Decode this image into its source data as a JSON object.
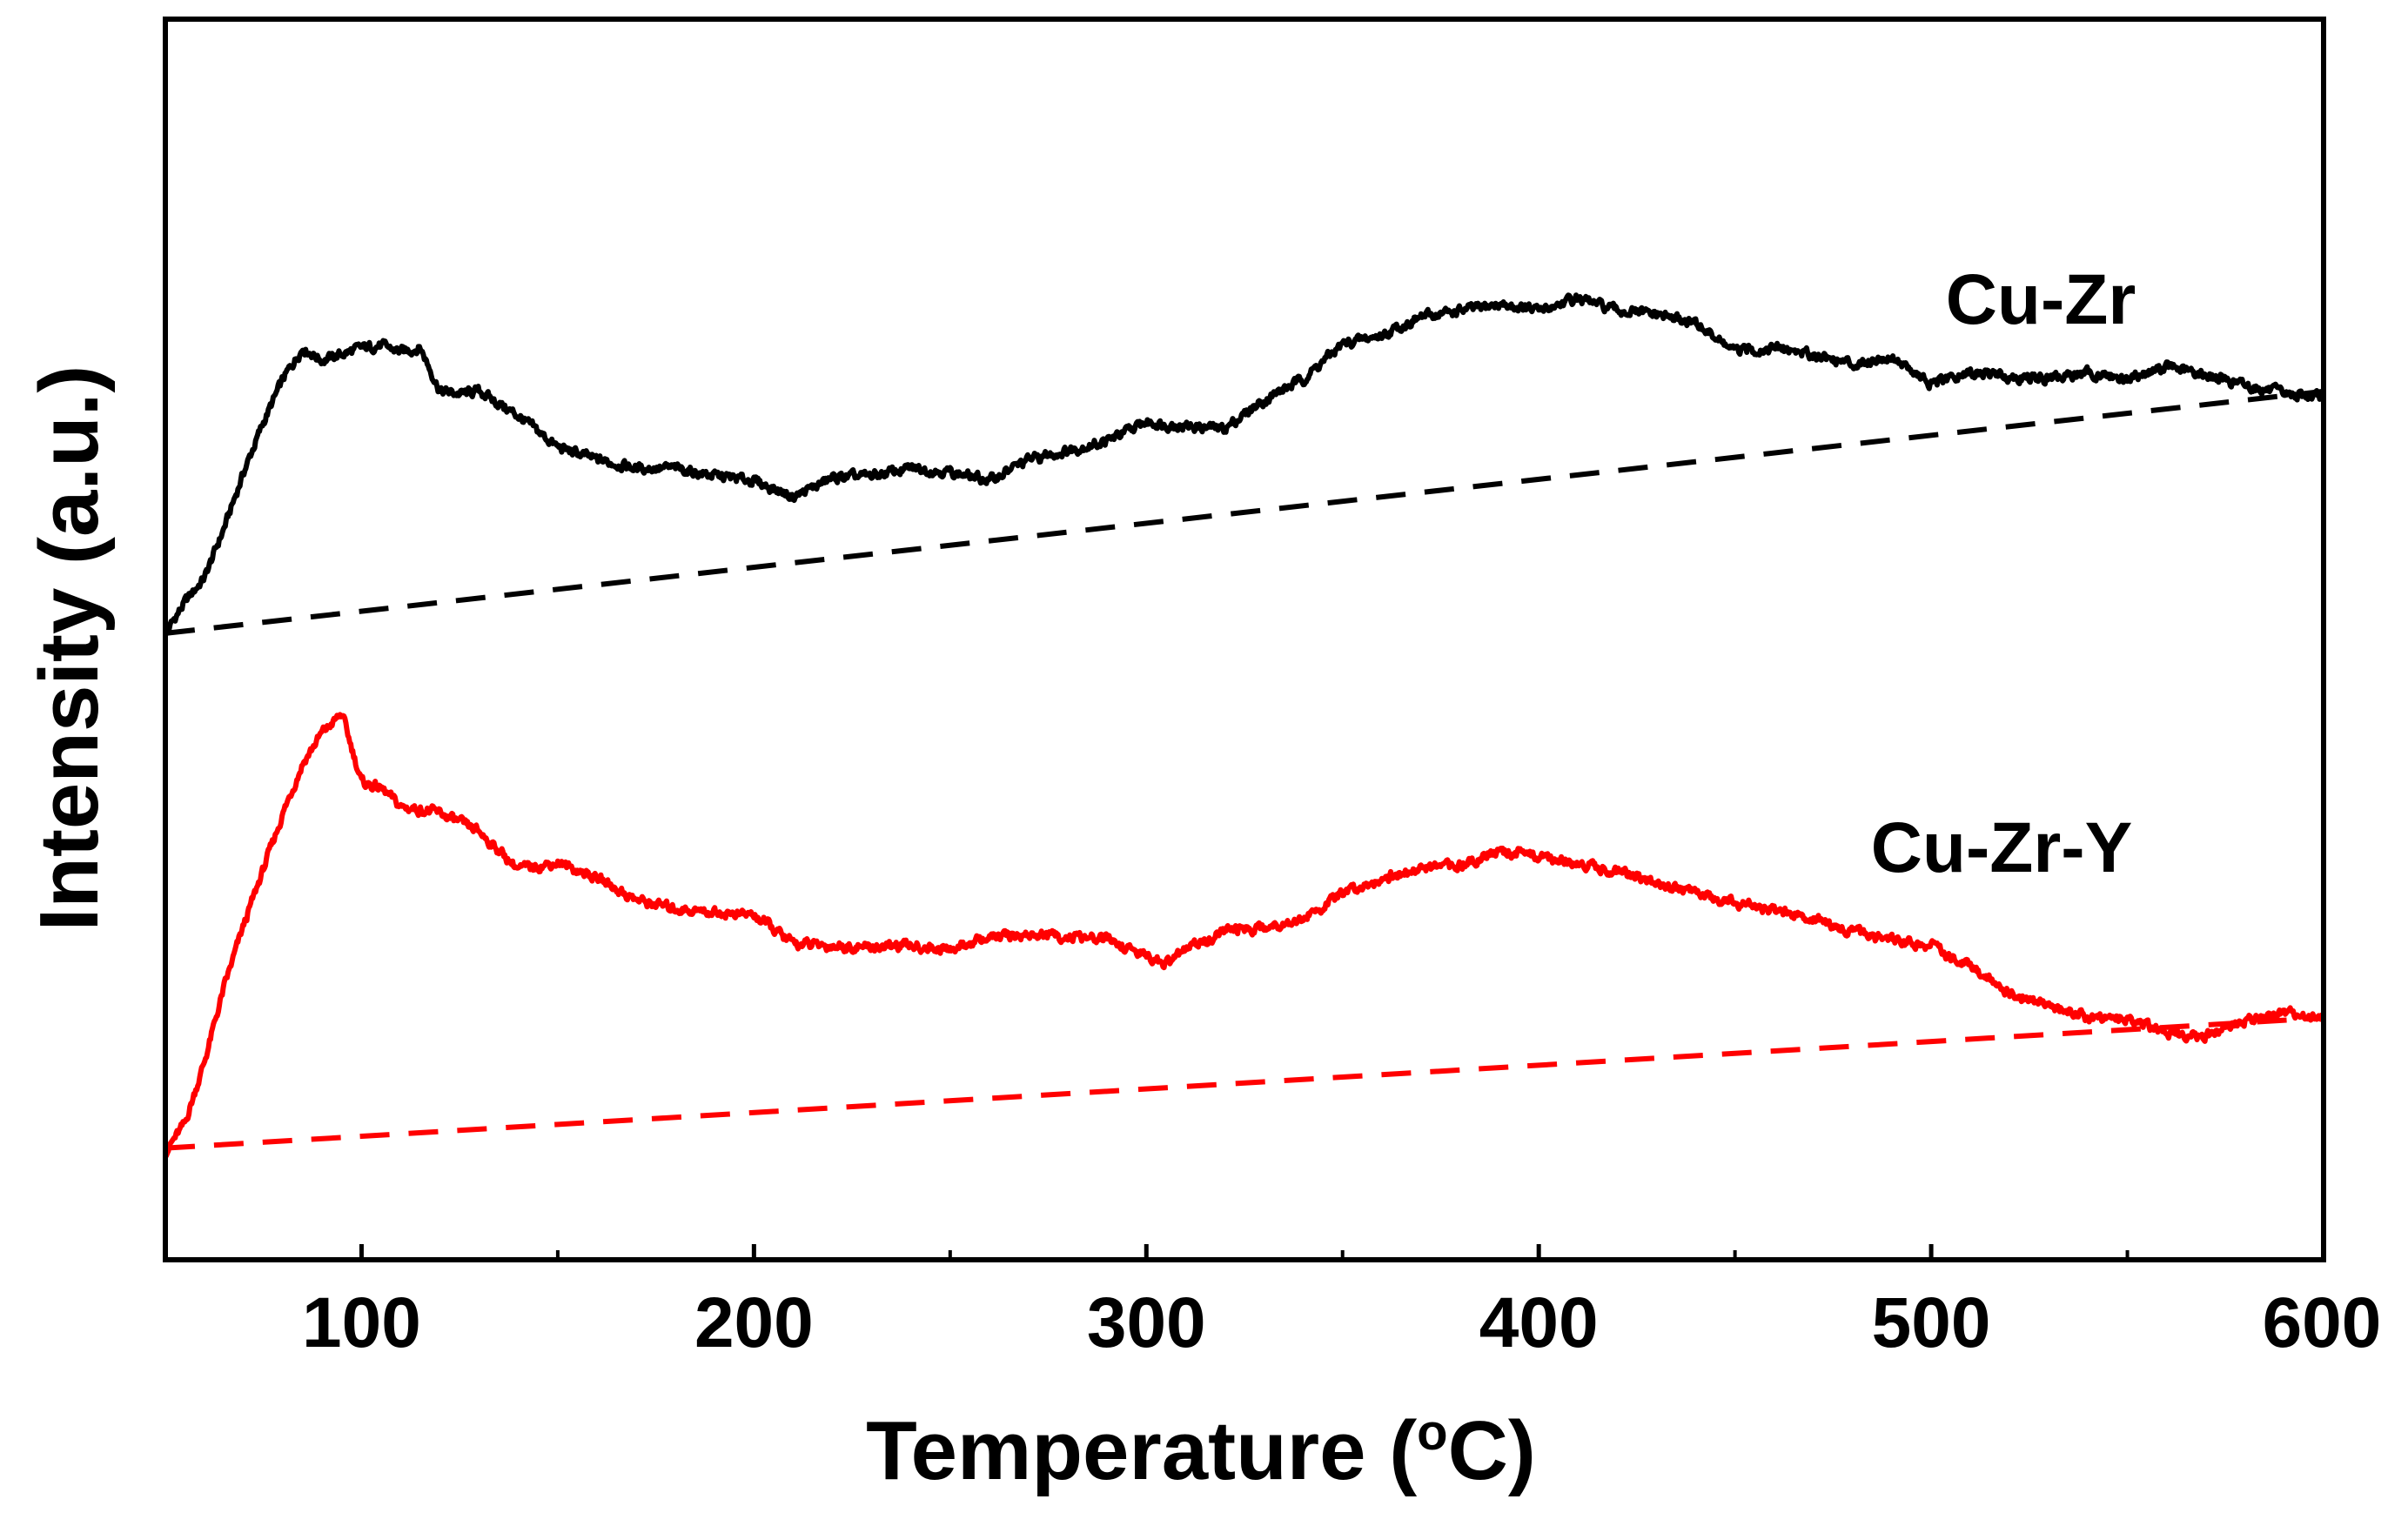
{
  "chart_data": {
    "type": "line",
    "xlabel": "Temperature (",
    "xlabel_unit_sup": "o",
    "xlabel_unit_rest": "C)",
    "ylabel": "Intensity (a.u.)",
    "xlim": [
      50,
      600
    ],
    "ylim": [
      0,
      100
    ],
    "x_ticks": [
      100,
      200,
      300,
      400,
      500,
      600
    ],
    "x_tick_labels": [
      "100",
      "200",
      "300",
      "400",
      "500",
      "600"
    ],
    "y_ticks_shown": false,
    "grid": false,
    "legend": "none",
    "series": [
      {
        "name": "Cu-Zr",
        "label": "Cu-Zr",
        "color": "#000000",
        "x": [
          50,
          55,
          60,
          65,
          70,
          75,
          80,
          85,
          90,
          95,
          100,
          105,
          110,
          115,
          120,
          125,
          130,
          140,
          150,
          160,
          170,
          180,
          190,
          200,
          210,
          220,
          230,
          240,
          250,
          260,
          270,
          280,
          290,
          300,
          310,
          320,
          330,
          340,
          350,
          360,
          370,
          380,
          390,
          400,
          410,
          420,
          430,
          440,
          450,
          460,
          470,
          480,
          490,
          500,
          510,
          520,
          530,
          540,
          550,
          560,
          570,
          580,
          590,
          600
        ],
        "y": [
          50.5,
          53,
          55,
          59,
          63.5,
          67.5,
          71,
          73.5,
          72.5,
          73,
          73.5,
          73.7,
          73.2,
          73.5,
          70,
          69.8,
          70,
          68,
          65.5,
          64.5,
          63.8,
          63.8,
          63.2,
          62.8,
          61.5,
          63,
          63.2,
          63.8,
          63.5,
          62.8,
          64.5,
          65.2,
          66,
          67.5,
          67.2,
          67,
          69.3,
          71,
          73.8,
          74.5,
          76,
          76.5,
          77,
          76.5,
          77.5,
          76.5,
          76.2,
          75.5,
          73.2,
          73.5,
          73,
          72.2,
          72.8,
          70.5,
          71.5,
          71.2,
          71,
          71.5,
          71,
          72,
          71.3,
          70.5,
          69.8,
          69.5
        ]
      },
      {
        "name": "Cu-Zr-Y",
        "label": "Cu-Zr-Y",
        "color": "#ff0000",
        "x": [
          50,
          55,
          60,
          65,
          70,
          75,
          80,
          85,
          90,
          95,
          100,
          105,
          110,
          115,
          120,
          130,
          140,
          150,
          160,
          170,
          180,
          190,
          200,
          210,
          220,
          230,
          240,
          250,
          260,
          270,
          280,
          290,
          300,
          305,
          310,
          320,
          330,
          340,
          350,
          360,
          370,
          380,
          390,
          400,
          410,
          420,
          430,
          440,
          450,
          460,
          470,
          480,
          490,
          500,
          510,
          520,
          530,
          540,
          550,
          560,
          570,
          580,
          590,
          600
        ],
        "y": [
          8.7,
          11,
          16,
          22,
          27,
          31.5,
          36,
          40,
          42.5,
          44,
          38.5,
          38,
          36.5,
          36.3,
          36,
          34.5,
          31.5,
          32,
          30.8,
          29,
          28.3,
          28,
          27.8,
          25.5,
          25.3,
          25.2,
          25.3,
          25,
          26,
          26.2,
          26,
          25.8,
          24.5,
          23.8,
          25,
          26.5,
          26.8,
          27.5,
          29.5,
          30.8,
          31.5,
          31.8,
          33,
          32.5,
          32,
          31.3,
          30.3,
          29.5,
          28.8,
          28.2,
          27.5,
          26.5,
          25.7,
          25.3,
          23.6,
          21.5,
          20.5,
          19.5,
          19.5,
          18.3,
          18,
          19.3,
          19.8,
          19.5
        ]
      }
    ],
    "baselines": [
      {
        "name": "Cu-Zr baseline",
        "color": "#000000",
        "style": "dashed",
        "x": [
          50,
          600
        ],
        "y": [
          50.5,
          70
        ]
      },
      {
        "name": "Cu-Zr-Y baseline",
        "color": "#ff0000",
        "style": "dashed",
        "x": [
          50,
          600
        ],
        "y": [
          9,
          19.5
        ]
      }
    ]
  }
}
